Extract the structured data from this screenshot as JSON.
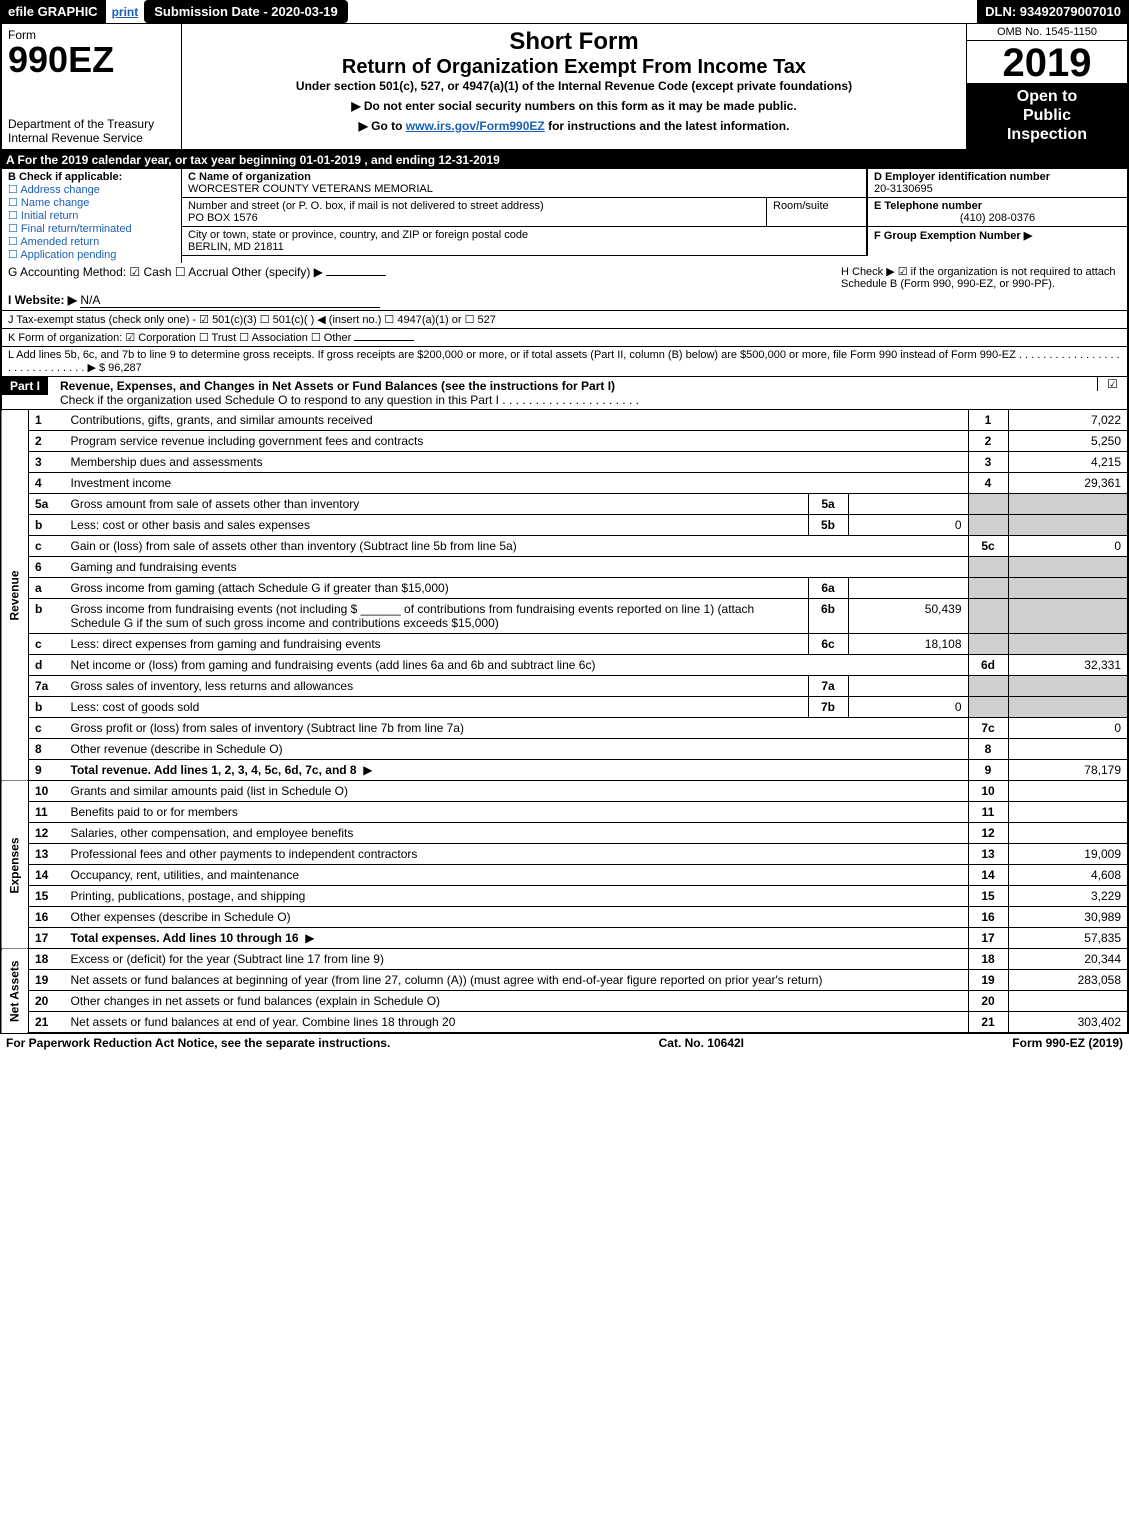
{
  "top": {
    "efile": "efile GRAPHIC",
    "print": "print",
    "submission_date_label": "Submission Date - 2020-03-19",
    "dln": "DLN: 93492079007010"
  },
  "header": {
    "form_label": "Form",
    "form_no": "990EZ",
    "dept": "Department of the Treasury",
    "irs": "Internal Revenue Service",
    "short_form": "Short Form",
    "title2": "Return of Organization Exempt From Income Tax",
    "subtitle": "Under section 501(c), 527, or 4947(a)(1) of the Internal Revenue Code (except private foundations)",
    "note1": "▶ Do not enter social security numbers on this form as it may be made public.",
    "note2_pre": "▶ Go to ",
    "note2_link": "www.irs.gov/Form990EZ",
    "note2_post": " for instructions and the latest information.",
    "omb": "OMB No. 1545-1150",
    "year": "2019",
    "open1": "Open to",
    "open2": "Public",
    "open3": "Inspection"
  },
  "period": "A  For the 2019 calendar year, or tax year beginning 01-01-2019 , and ending 12-31-2019",
  "sectionB": {
    "title": "B  Check if applicable:",
    "items": [
      "Address change",
      "Name change",
      "Initial return",
      "Final return/terminated",
      "Amended return",
      "Application pending"
    ]
  },
  "sectionC": {
    "label": "C Name of organization",
    "name": "WORCESTER COUNTY VETERANS MEMORIAL",
    "addr_label": "Number and street (or P. O. box, if mail is not delivered to street address)",
    "addr": "PO BOX 1576",
    "room_label": "Room/suite",
    "city_label": "City or town, state or province, country, and ZIP or foreign postal code",
    "city": "BERLIN, MD  21811"
  },
  "sectionD": {
    "label": "D Employer identification number",
    "val": "20-3130695"
  },
  "sectionE": {
    "label": "E Telephone number",
    "val": "(410) 208-0376"
  },
  "sectionF": {
    "label": "F Group Exemption Number  ▶"
  },
  "GHI": {
    "g": "G Accounting Method:  ☑ Cash  ☐ Accrual  Other (specify) ▶",
    "h": "H  Check ▶ ☑ if the organization is not required to attach Schedule B (Form 990, 990-EZ, or 990-PF).",
    "i_label": "I Website: ▶",
    "i_val": "N/A",
    "j": "J Tax-exempt status (check only one) - ☑ 501(c)(3)  ☐ 501(c)( ) ◀ (insert no.)  ☐ 4947(a)(1) or  ☐ 527",
    "k": "K Form of organization:  ☑ Corporation  ☐ Trust  ☐ Association  ☐ Other",
    "l": "L Add lines 5b, 6c, and 7b to line 9 to determine gross receipts. If gross receipts are $200,000 or more, or if total assets (Part II, column (B) below) are $500,000 or more, file Form 990 instead of Form 990-EZ . . . . . . . . . . . . . . . . . . . . . . . . . . . . . . ▶ $ 96,287"
  },
  "part1": {
    "label": "Part I",
    "title": "Revenue, Expenses, and Changes in Net Assets or Fund Balances (see the instructions for Part I)",
    "note": "Check if the organization used Schedule O to respond to any question in this Part I . . . . . . . . . . . . . . . . . . . . .",
    "check": "☑"
  },
  "side_labels": {
    "revenue": "Revenue",
    "expenses": "Expenses",
    "netassets": "Net Assets"
  },
  "rows": [
    {
      "no": "1",
      "desc": "Contributions, gifts, grants, and similar amounts received",
      "ln": "1",
      "amt": "7,022"
    },
    {
      "no": "2",
      "desc": "Program service revenue including government fees and contracts",
      "ln": "2",
      "amt": "5,250"
    },
    {
      "no": "3",
      "desc": "Membership dues and assessments",
      "ln": "3",
      "amt": "4,215"
    },
    {
      "no": "4",
      "desc": "Investment income",
      "ln": "4",
      "amt": "29,361"
    },
    {
      "no": "5a",
      "desc": "Gross amount from sale of assets other than inventory",
      "sub": "5a",
      "subval": "",
      "shade": true
    },
    {
      "no": "b",
      "desc": "Less: cost or other basis and sales expenses",
      "sub": "5b",
      "subval": "0",
      "shade": true
    },
    {
      "no": "c",
      "desc": "Gain or (loss) from sale of assets other than inventory (Subtract line 5b from line 5a)",
      "ln": "5c",
      "amt": "0"
    },
    {
      "no": "6",
      "desc": "Gaming and fundraising events",
      "shade": true
    },
    {
      "no": "a",
      "desc": "Gross income from gaming (attach Schedule G if greater than $15,000)",
      "sub": "6a",
      "subval": "",
      "shade": true
    },
    {
      "no": "b",
      "desc": "Gross income from fundraising events (not including $ ______ of contributions from fundraising events reported on line 1) (attach Schedule G if the sum of such gross income and contributions exceeds $15,000)",
      "sub": "6b",
      "subval": "50,439",
      "shade": true
    },
    {
      "no": "c",
      "desc": "Less: direct expenses from gaming and fundraising events",
      "sub": "6c",
      "subval": "18,108",
      "shade": true
    },
    {
      "no": "d",
      "desc": "Net income or (loss) from gaming and fundraising events (add lines 6a and 6b and subtract line 6c)",
      "ln": "6d",
      "amt": "32,331"
    },
    {
      "no": "7a",
      "desc": "Gross sales of inventory, less returns and allowances",
      "sub": "7a",
      "subval": "",
      "shade": true
    },
    {
      "no": "b",
      "desc": "Less: cost of goods sold",
      "sub": "7b",
      "subval": "0",
      "shade": true
    },
    {
      "no": "c",
      "desc": "Gross profit or (loss) from sales of inventory (Subtract line 7b from line 7a)",
      "ln": "7c",
      "amt": "0"
    },
    {
      "no": "8",
      "desc": "Other revenue (describe in Schedule O)",
      "ln": "8",
      "amt": ""
    },
    {
      "no": "9",
      "desc": "Total revenue. Add lines 1, 2, 3, 4, 5c, 6d, 7c, and 8",
      "ln": "9",
      "amt": "78,179",
      "bold": true,
      "arrow": true
    }
  ],
  "exp_rows": [
    {
      "no": "10",
      "desc": "Grants and similar amounts paid (list in Schedule O)",
      "ln": "10",
      "amt": ""
    },
    {
      "no": "11",
      "desc": "Benefits paid to or for members",
      "ln": "11",
      "amt": ""
    },
    {
      "no": "12",
      "desc": "Salaries, other compensation, and employee benefits",
      "ln": "12",
      "amt": ""
    },
    {
      "no": "13",
      "desc": "Professional fees and other payments to independent contractors",
      "ln": "13",
      "amt": "19,009"
    },
    {
      "no": "14",
      "desc": "Occupancy, rent, utilities, and maintenance",
      "ln": "14",
      "amt": "4,608"
    },
    {
      "no": "15",
      "desc": "Printing, publications, postage, and shipping",
      "ln": "15",
      "amt": "3,229"
    },
    {
      "no": "16",
      "desc": "Other expenses (describe in Schedule O)",
      "ln": "16",
      "amt": "30,989"
    },
    {
      "no": "17",
      "desc": "Total expenses. Add lines 10 through 16",
      "ln": "17",
      "amt": "57,835",
      "bold": true,
      "arrow": true
    }
  ],
  "na_rows": [
    {
      "no": "18",
      "desc": "Excess or (deficit) for the year (Subtract line 17 from line 9)",
      "ln": "18",
      "amt": "20,344"
    },
    {
      "no": "19",
      "desc": "Net assets or fund balances at beginning of year (from line 27, column (A)) (must agree with end-of-year figure reported on prior year's return)",
      "ln": "19",
      "amt": "283,058"
    },
    {
      "no": "20",
      "desc": "Other changes in net assets or fund balances (explain in Schedule O)",
      "ln": "20",
      "amt": ""
    },
    {
      "no": "21",
      "desc": "Net assets or fund balances at end of year. Combine lines 18 through 20",
      "ln": "21",
      "amt": "303,402"
    }
  ],
  "footer": {
    "left": "For Paperwork Reduction Act Notice, see the separate instructions.",
    "center": "Cat. No. 10642I",
    "right": "Form 990-EZ (2019)"
  },
  "colors": {
    "black": "#000000",
    "white": "#ffffff",
    "blue": "#1a5fb4",
    "shade": "#cfcfcf"
  }
}
